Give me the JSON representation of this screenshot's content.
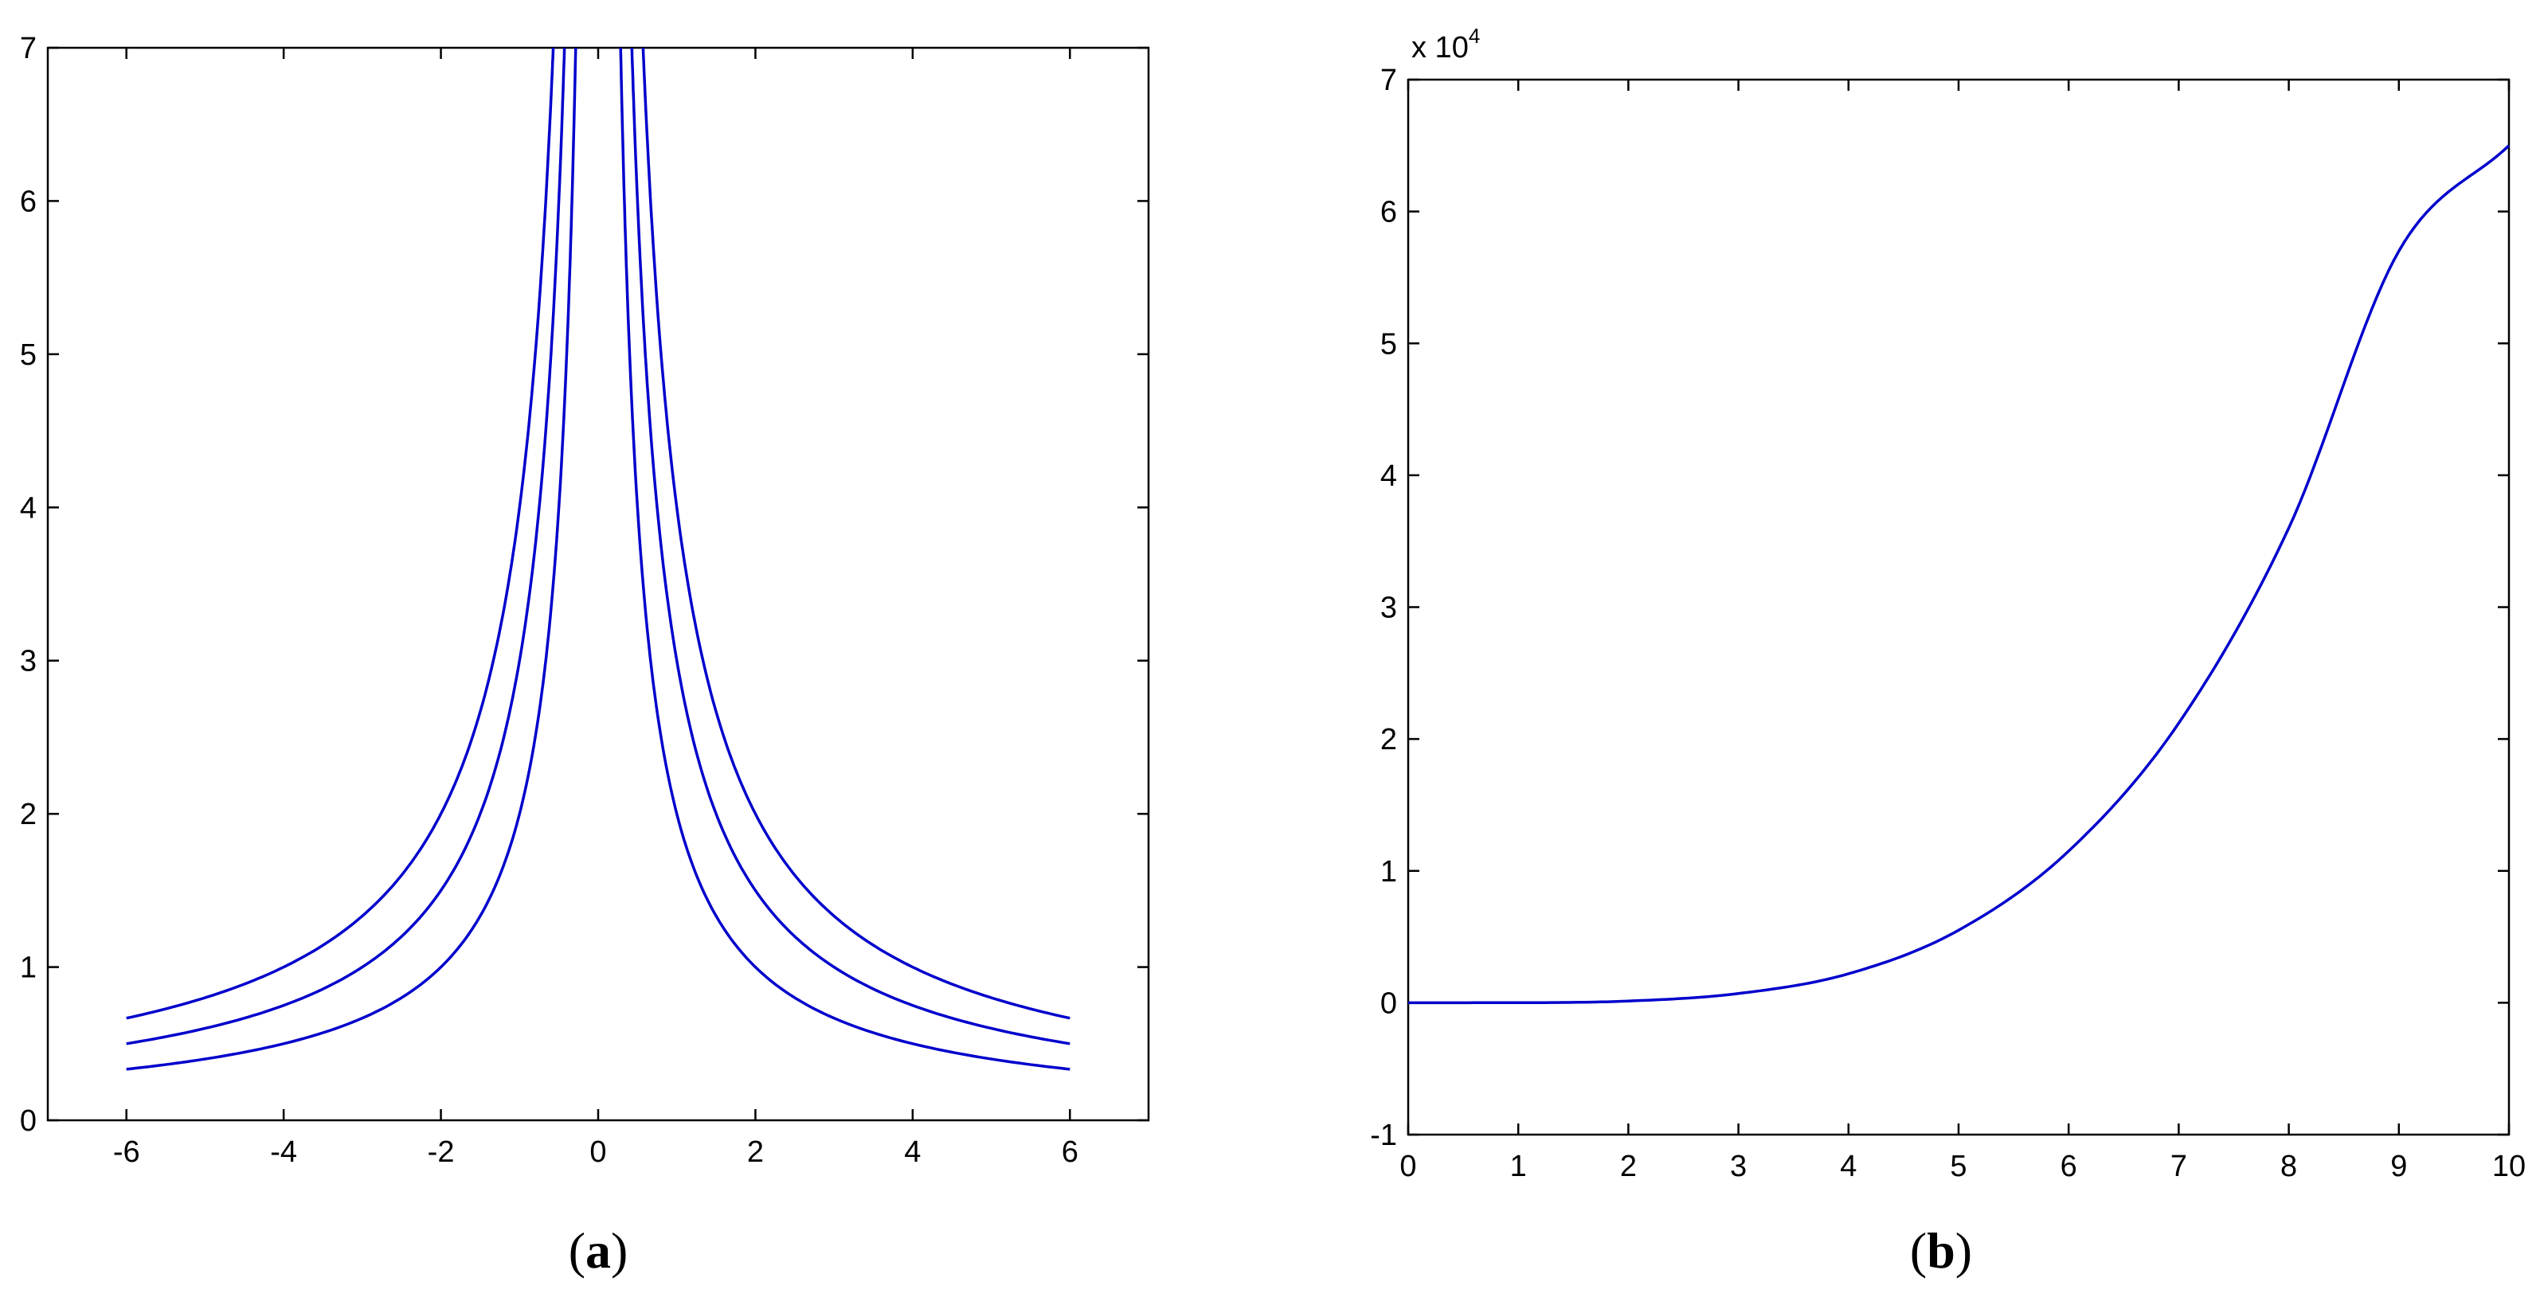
{
  "chart_data": [
    {
      "panel": "a",
      "type": "line",
      "caption": {
        "open": "(",
        "letter": "a",
        "close": ")"
      },
      "xlim": [
        -7,
        7
      ],
      "ylim": [
        0,
        7
      ],
      "xticks": [
        -6,
        -4,
        -2,
        0,
        2,
        4,
        6
      ],
      "yticks": [
        0,
        1,
        2,
        3,
        4,
        5,
        6,
        7
      ],
      "grid": false,
      "series": [
        {
          "function": "4/|x|",
          "x_range": [
            -6,
            6
          ],
          "x": [
            -6,
            -5,
            -4,
            -3,
            -2,
            -1.5,
            -1,
            -0.8,
            -0.7,
            0.7,
            0.8,
            1,
            1.5,
            2,
            3,
            4,
            5,
            6
          ],
          "y": [
            0.67,
            0.8,
            1.0,
            1.33,
            2.0,
            2.67,
            4.0,
            5.0,
            5.71,
            5.71,
            5.0,
            4.0,
            2.67,
            2.0,
            1.33,
            1.0,
            0.8,
            0.67
          ]
        },
        {
          "function": "3/|x|",
          "x_range": [
            -6,
            6
          ],
          "x": [
            -6,
            -5,
            -4,
            -3,
            -2,
            -1.5,
            -1,
            -0.75,
            -0.6,
            0.6,
            0.75,
            1,
            1.5,
            2,
            3,
            4,
            5,
            6
          ],
          "y": [
            0.5,
            0.6,
            0.75,
            1.0,
            1.5,
            2.0,
            3.0,
            4.0,
            5.0,
            5.0,
            4.0,
            3.0,
            2.0,
            1.5,
            1.0,
            0.75,
            0.6,
            0.5
          ]
        },
        {
          "function": "2/|x|",
          "x_range": [
            -6,
            6
          ],
          "x": [
            -6,
            -5,
            -4,
            -3,
            -2,
            -1.5,
            -1,
            -0.75,
            -0.5,
            0.5,
            0.75,
            1,
            1.5,
            2,
            3,
            4,
            5,
            6
          ],
          "y": [
            0.33,
            0.4,
            0.5,
            0.67,
            1.0,
            1.33,
            2.0,
            2.67,
            4.0,
            4.0,
            2.67,
            2.0,
            1.33,
            1.0,
            0.67,
            0.5,
            0.4,
            0.33
          ]
        }
      ]
    },
    {
      "panel": "b",
      "type": "line",
      "caption": {
        "open": "(",
        "letter": "b",
        "close": ")"
      },
      "xlim": [
        0,
        10
      ],
      "ylim": [
        -1,
        7
      ],
      "xticks": [
        0,
        1,
        2,
        3,
        4,
        5,
        6,
        7,
        8,
        9,
        10
      ],
      "yticks": [
        -1,
        0,
        1,
        2,
        3,
        4,
        5,
        6,
        7
      ],
      "y_multiplier": {
        "prefix": "x 10",
        "exponent": "4"
      },
      "grid": false,
      "series": [
        {
          "x": [
            0,
            1,
            2,
            3,
            4,
            5,
            6,
            7,
            8,
            9,
            10
          ],
          "y": [
            0,
            0.0007,
            0.013,
            0.07,
            0.22,
            0.55,
            1.15,
            2.12,
            3.6,
            5.7,
            6.5
          ]
        }
      ]
    }
  ]
}
